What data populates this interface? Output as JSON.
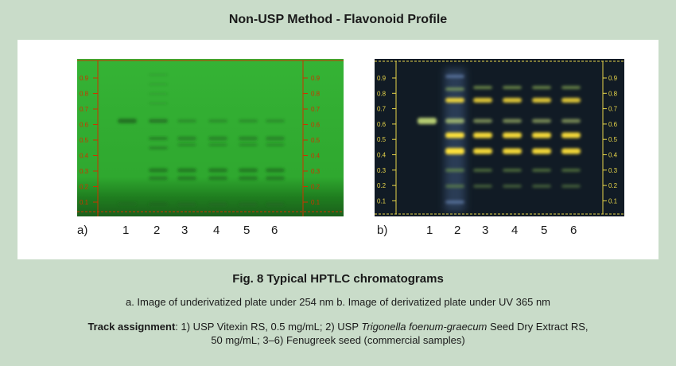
{
  "title": "Non-USP Method - Flavonoid Profile",
  "plates": [
    {
      "id": "a",
      "label": "a)",
      "track_numbers": [
        "1",
        "2",
        "3",
        "4",
        "5",
        "6"
      ],
      "rf_ticks": [
        "0.9",
        "0.8",
        "0.7",
        "0.6",
        "0.5",
        "0.4",
        "0.3",
        "0.2",
        "0.1"
      ],
      "background_color": "#3ab83a",
      "band_color": "#1f6a1f",
      "scale_color": "#cc3300"
    },
    {
      "id": "b",
      "label": "b)",
      "track_numbers": [
        "1",
        "2",
        "3",
        "4",
        "5",
        "6"
      ],
      "rf_ticks": [
        "0.9",
        "0.8",
        "0.7",
        "0.6",
        "0.5",
        "0.4",
        "0.3",
        "0.2",
        "0.1"
      ],
      "background_color": "#101a24",
      "band_color": "#ffe23a",
      "scale_color": "#e8d64a"
    }
  ],
  "figure_title": "Fig. 8  Typical HPTLC chromatograms",
  "figure_subtitle": "a. Image of underivatized plate under 254 nm  b. Image of derivatized plate under UV 365 nm",
  "track_assignment": {
    "label": "Track assignment",
    "text_1": ": 1) USP Vitexin RS, 0.5 mg/mL; 2) USP ",
    "species": "Trigonella foenum-graecum",
    "text_2": " Seed Dry Extract RS,",
    "text_3": "50 mg/mL; 3–6) Fenugreek seed (commercial samples)"
  }
}
